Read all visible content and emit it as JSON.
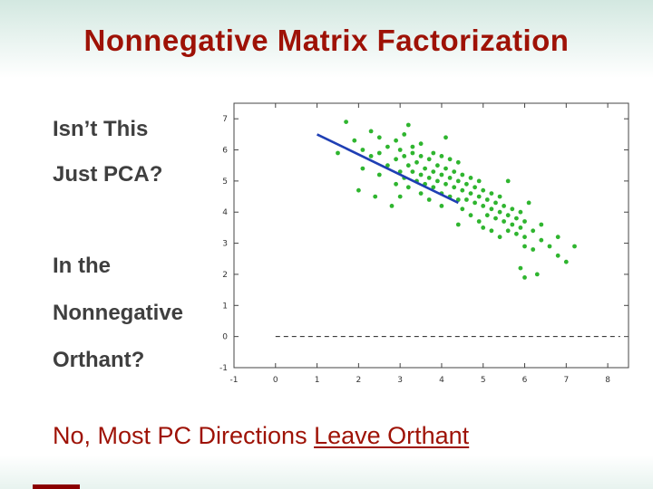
{
  "slide": {
    "title": "Nonnegative Matrix Factorization",
    "left_block1": [
      "Isn’t This",
      "Just PCA?"
    ],
    "left_block2": [
      "In the",
      "Nonnegative",
      "Orthant?"
    ],
    "conclusion_prefix": "No, Most PC Directions ",
    "conclusion_underlined": "Leave Orthant",
    "colors": {
      "title": "#9e1206",
      "body_text": "#3f3f3f",
      "scatter_dot": "#2fb52f",
      "pc_line": "#1f3fb4",
      "zero_line": "#222222"
    }
  },
  "chart_data": {
    "type": "scatter",
    "title": "",
    "xlabel": "",
    "ylabel": "",
    "grid": false,
    "legend": "none",
    "xlim": [
      -1,
      8.5
    ],
    "ylim": [
      -1,
      7.5
    ],
    "x_ticks": [
      -1,
      0,
      1,
      2,
      3,
      4,
      5,
      6,
      7,
      8
    ],
    "y_ticks": [
      -1,
      0,
      1,
      2,
      3,
      4,
      5,
      6,
      7
    ],
    "series": [
      {
        "name": "data-cloud",
        "type": "scatter",
        "color": "#2fb52f",
        "points": [
          [
            1.5,
            5.9
          ],
          [
            1.7,
            6.9
          ],
          [
            1.9,
            6.3
          ],
          [
            2.0,
            4.7
          ],
          [
            2.1,
            6.0
          ],
          [
            2.1,
            5.4
          ],
          [
            2.3,
            6.6
          ],
          [
            2.3,
            5.8
          ],
          [
            2.4,
            4.5
          ],
          [
            2.5,
            5.9
          ],
          [
            2.5,
            5.2
          ],
          [
            2.5,
            6.4
          ],
          [
            2.7,
            6.1
          ],
          [
            2.7,
            5.5
          ],
          [
            2.8,
            4.2
          ],
          [
            2.9,
            5.7
          ],
          [
            2.9,
            6.3
          ],
          [
            2.9,
            4.9
          ],
          [
            3.0,
            5.3
          ],
          [
            3.0,
            6.0
          ],
          [
            3.0,
            4.5
          ],
          [
            3.1,
            5.8
          ],
          [
            3.1,
            5.1
          ],
          [
            3.1,
            6.5
          ],
          [
            3.2,
            5.5
          ],
          [
            3.2,
            4.8
          ],
          [
            3.2,
            6.8
          ],
          [
            3.3,
            6.1
          ],
          [
            3.3,
            5.3
          ],
          [
            3.3,
            5.9
          ],
          [
            3.4,
            5.0
          ],
          [
            3.4,
            5.6
          ],
          [
            3.5,
            5.8
          ],
          [
            3.5,
            4.6
          ],
          [
            3.5,
            5.2
          ],
          [
            3.5,
            6.2
          ],
          [
            3.6,
            5.4
          ],
          [
            3.6,
            4.9
          ],
          [
            3.7,
            5.7
          ],
          [
            3.7,
            5.1
          ],
          [
            3.7,
            4.4
          ],
          [
            3.8,
            5.9
          ],
          [
            3.8,
            5.3
          ],
          [
            3.8,
            4.8
          ],
          [
            3.9,
            5.0
          ],
          [
            3.9,
            5.5
          ],
          [
            4.0,
            4.6
          ],
          [
            4.0,
            5.8
          ],
          [
            4.0,
            5.2
          ],
          [
            4.0,
            4.2
          ],
          [
            4.1,
            5.4
          ],
          [
            4.1,
            4.9
          ],
          [
            4.1,
            6.4
          ],
          [
            4.2,
            5.1
          ],
          [
            4.2,
            4.5
          ],
          [
            4.2,
            5.7
          ],
          [
            4.3,
            4.8
          ],
          [
            4.3,
            5.3
          ],
          [
            4.4,
            4.4
          ],
          [
            4.4,
            5.0
          ],
          [
            4.4,
            5.6
          ],
          [
            4.4,
            3.6
          ],
          [
            4.5,
            4.7
          ],
          [
            4.5,
            4.1
          ],
          [
            4.5,
            5.2
          ],
          [
            4.6,
            4.9
          ],
          [
            4.6,
            4.4
          ],
          [
            4.7,
            5.1
          ],
          [
            4.7,
            4.6
          ],
          [
            4.7,
            3.9
          ],
          [
            4.8,
            4.3
          ],
          [
            4.8,
            4.8
          ],
          [
            4.9,
            4.5
          ],
          [
            4.9,
            5.0
          ],
          [
            4.9,
            3.7
          ],
          [
            5.0,
            4.2
          ],
          [
            5.0,
            4.7
          ],
          [
            5.0,
            3.5
          ],
          [
            5.1,
            4.4
          ],
          [
            5.1,
            3.9
          ],
          [
            5.2,
            4.6
          ],
          [
            5.2,
            4.1
          ],
          [
            5.2,
            3.4
          ],
          [
            5.3,
            4.3
          ],
          [
            5.3,
            3.8
          ],
          [
            5.4,
            4.0
          ],
          [
            5.4,
            4.5
          ],
          [
            5.4,
            3.2
          ],
          [
            5.5,
            3.7
          ],
          [
            5.5,
            4.2
          ],
          [
            5.6,
            3.9
          ],
          [
            5.6,
            3.4
          ],
          [
            5.6,
            5.0
          ],
          [
            5.7,
            4.1
          ],
          [
            5.7,
            3.6
          ],
          [
            5.8,
            3.3
          ],
          [
            5.8,
            3.8
          ],
          [
            5.9,
            3.5
          ],
          [
            5.9,
            4.0
          ],
          [
            5.9,
            2.2
          ],
          [
            6.0,
            3.2
          ],
          [
            6.0,
            3.7
          ],
          [
            6.0,
            2.9
          ],
          [
            6.0,
            1.9
          ],
          [
            6.1,
            4.3
          ],
          [
            6.2,
            3.4
          ],
          [
            6.2,
            2.8
          ],
          [
            6.3,
            2.0
          ],
          [
            6.4,
            3.1
          ],
          [
            6.4,
            3.6
          ],
          [
            6.6,
            2.9
          ],
          [
            6.8,
            3.2
          ],
          [
            6.8,
            2.6
          ],
          [
            7.0,
            2.4
          ],
          [
            7.2,
            2.9
          ]
        ]
      },
      {
        "name": "pc-direction-line",
        "type": "line",
        "color": "#1f3fb4",
        "points": [
          [
            1.0,
            6.5
          ],
          [
            4.4,
            4.3
          ]
        ]
      },
      {
        "name": "zero-dashed-line",
        "type": "dashed-line",
        "color": "#222222",
        "points": [
          [
            0.0,
            0
          ],
          [
            8.3,
            0
          ]
        ]
      }
    ]
  }
}
